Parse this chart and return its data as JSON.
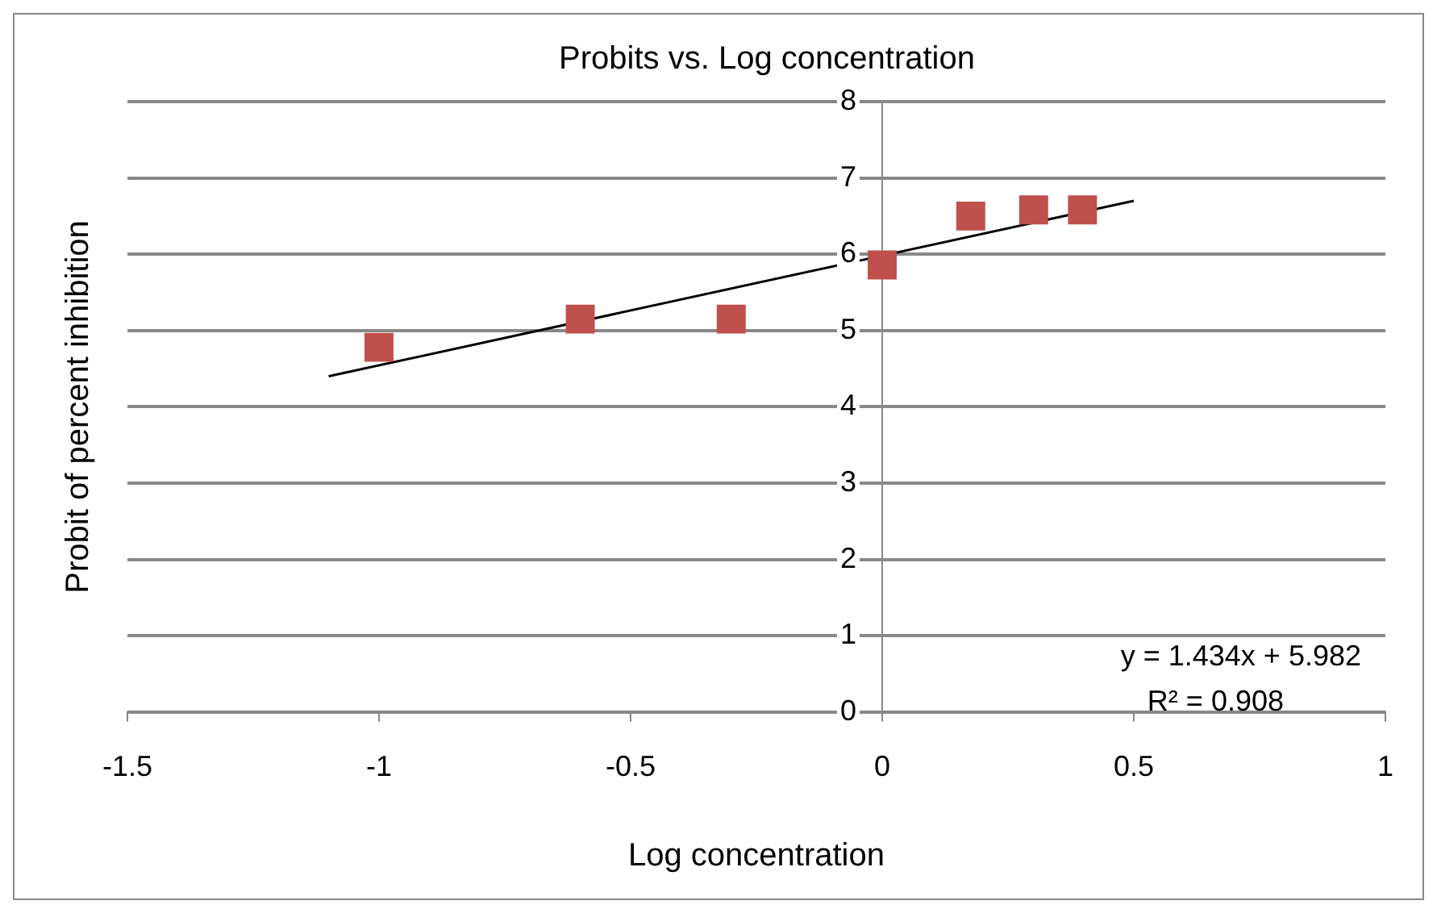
{
  "chart_data": {
    "type": "scatter",
    "title": "Probits vs. Log concentration",
    "xlabel": "Log concentration",
    "ylabel": "Probit of percent inhibition",
    "x": [
      -1,
      -0.6,
      -0.3,
      0,
      0.176,
      0.301,
      0.398
    ],
    "series": [
      {
        "type": "scatter",
        "color": "#c0504d",
        "marker": "square",
        "values": [
          4.78,
          5.15,
          5.15,
          5.86,
          6.5,
          6.58,
          6.58
        ]
      },
      {
        "type": "line",
        "color": "#000000",
        "marker": "none",
        "x": [
          -1.1,
          0.5
        ],
        "values": [
          4.4,
          6.7
        ]
      }
    ],
    "xlim": [
      -1.5,
      1
    ],
    "xticks": [
      -1.5,
      -1,
      -0.5,
      0,
      0.5,
      1
    ],
    "ylim": [
      0,
      8
    ],
    "yticks": [
      0,
      1,
      2,
      3,
      4,
      5,
      6,
      7,
      8
    ],
    "grid": "y",
    "legend": false,
    "annotations": [
      "y = 1.434x + 5.982",
      "R² = 0.908"
    ]
  }
}
